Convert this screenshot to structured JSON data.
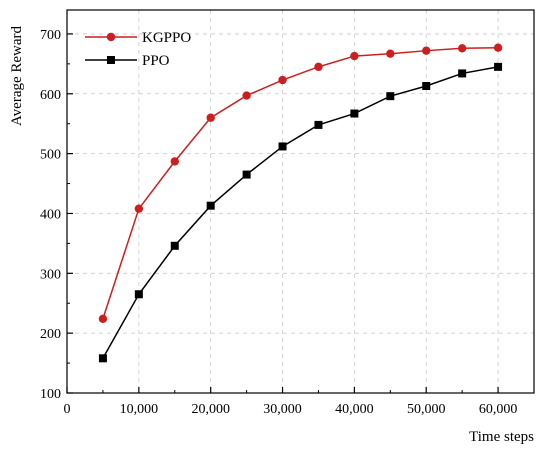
{
  "chart_data": {
    "type": "line",
    "xlabel": "Time steps",
    "ylabel": "Average Reward",
    "xlim": [
      0,
      65000
    ],
    "ylim": [
      100,
      740
    ],
    "x_ticks": [
      0,
      10000,
      20000,
      30000,
      40000,
      50000,
      60000
    ],
    "x_tick_labels": [
      "0",
      "10,000",
      "20,000",
      "30,000",
      "40,000",
      "50,000",
      "60,000"
    ],
    "y_ticks": [
      100,
      200,
      300,
      400,
      500,
      600,
      700
    ],
    "y_tick_labels": [
      "100",
      "200",
      "300",
      "400",
      "500",
      "600",
      "700"
    ],
    "grid": true,
    "legend_position": "top-left",
    "x": [
      5000,
      10000,
      15000,
      20000,
      25000,
      30000,
      35000,
      40000,
      45000,
      50000,
      55000,
      60000
    ],
    "series": [
      {
        "name": "KGPPO",
        "color": "#cc1f1f",
        "marker": "circle",
        "values": [
          224,
          408,
          487,
          560,
          597,
          623,
          645,
          663,
          667,
          672,
          676,
          677
        ]
      },
      {
        "name": "PPO",
        "color": "#000000",
        "marker": "square",
        "values": [
          158,
          265,
          346,
          413,
          465,
          512,
          548,
          567,
          596,
          613,
          634,
          645
        ]
      }
    ]
  }
}
